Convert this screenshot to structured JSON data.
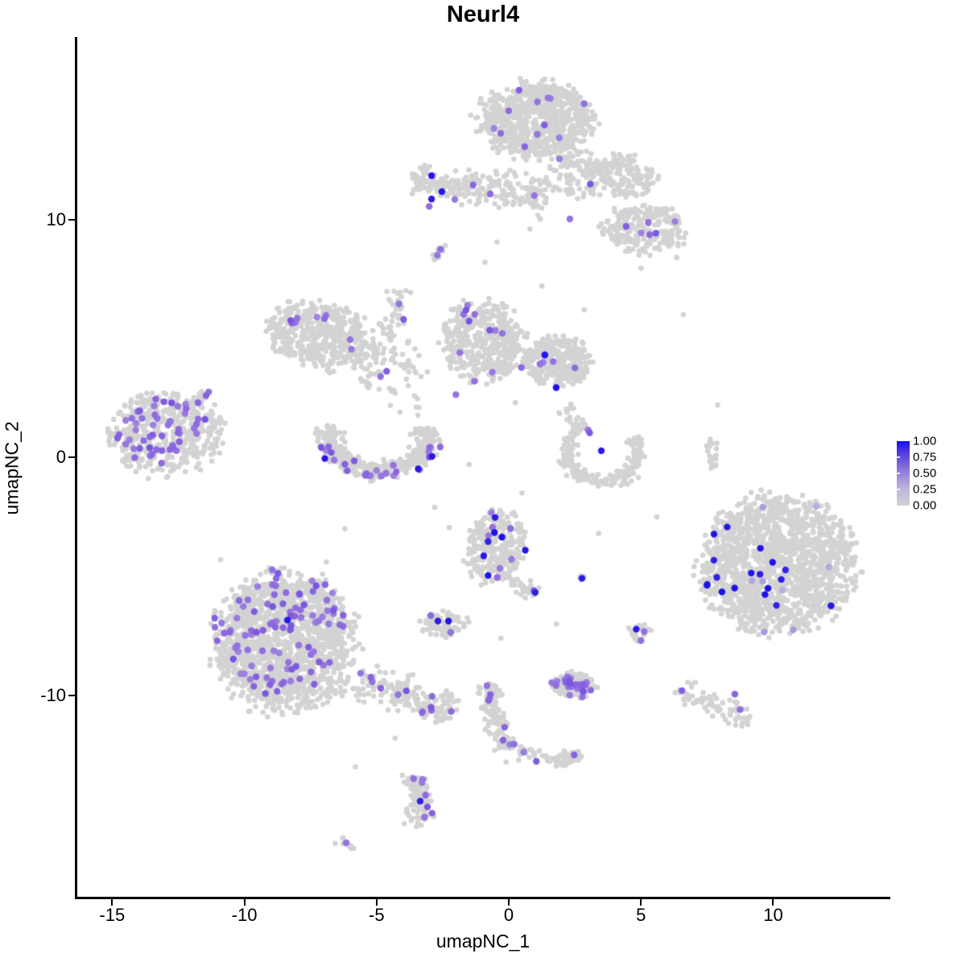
{
  "chart_data": {
    "type": "scatter",
    "title": "Neurl4",
    "xlabel": "umapNC_1",
    "ylabel": "umapNC_2",
    "xlim": [
      -16.35,
      14.4
    ],
    "ylim": [
      -18.5,
      17.6
    ],
    "x_ticks": [
      {
        "value": -15,
        "label": "-15"
      },
      {
        "value": -10,
        "label": "-10"
      },
      {
        "value": -5,
        "label": "-5"
      },
      {
        "value": 0,
        "label": "0"
      },
      {
        "value": 5,
        "label": "5"
      },
      {
        "value": 10,
        "label": "10"
      }
    ],
    "y_ticks": [
      {
        "value": 10,
        "label": "10"
      },
      {
        "value": 0,
        "label": "0"
      },
      {
        "value": -10,
        "label": "-10"
      }
    ],
    "legend": {
      "labels": [
        "1.00",
        "0.75",
        "0.50",
        "0.25",
        "0.00"
      ],
      "values": [
        1.0,
        0.75,
        0.5,
        0.25,
        0.0
      ],
      "gradient_top": "#1a0fe8",
      "gradient_bottom": "#d3d3d3"
    },
    "colors": {
      "low": "#D3D3D3",
      "light": "#B2A5DE",
      "mid": "#8A63DF",
      "high": "#1C10E8"
    },
    "point": {
      "r_gray": 3.3,
      "r_colored": 4.2
    },
    "seed": 42,
    "clusters": [
      {
        "name": "top-blob",
        "shape": "blob",
        "cx": 1.0,
        "cy": 14.2,
        "rx": 2.1,
        "ry": 1.55,
        "rot": 0,
        "n": 750,
        "mids": 12
      },
      {
        "name": "top-blob-tail",
        "shape": "blob",
        "cx": 2.6,
        "cy": 11.9,
        "rx": 1.15,
        "ry": 1.0,
        "rot": 0,
        "n": 110,
        "mids": 2
      },
      {
        "name": "top-arm-upper",
        "shape": "blob",
        "cx": 4.4,
        "cy": 11.8,
        "rx": 1.2,
        "ry": 0.85,
        "rot": -20,
        "n": 140
      },
      {
        "name": "top-arm-lower",
        "shape": "blob",
        "cx": 5.1,
        "cy": 9.6,
        "rx": 1.5,
        "ry": 1.05,
        "rot": 0,
        "n": 230,
        "mids": 5,
        "colored_shape": {
          "shape": "blob",
          "cx": 5.5,
          "cy": 9.5,
          "rx": 0.9,
          "ry": 0.6,
          "rot": 0
        },
        "mid_pts": [
          [
            2.31,
            10.02
          ],
          [
            4.44,
            9.71
          ]
        ]
      },
      {
        "name": "upper-band",
        "shape": "strand",
        "x1": -3.6,
        "y1": 11.6,
        "x2": 1.5,
        "y2": 11.05,
        "w": 0.42,
        "n": 240,
        "high_pts": [
          [
            -2.92,
            11.84
          ],
          [
            -2.53,
            11.17
          ],
          [
            -2.92,
            10.86
          ]
        ],
        "mid_pts": [
          [
            -3.01,
            10.55
          ],
          [
            -2.04,
            10.84
          ],
          [
            -0.7,
            11.07
          ],
          [
            0.97,
            11.0
          ],
          [
            -1.35,
            11.45
          ]
        ]
      },
      {
        "name": "small-dash-upper",
        "shape": "strand",
        "x1": -2.87,
        "y1": 8.3,
        "x2": -2.5,
        "y2": 8.97,
        "w": 0.1,
        "n": 10,
        "mid_pts": [
          [
            -2.7,
            8.5
          ],
          [
            -2.58,
            8.75
          ]
        ]
      },
      {
        "name": "left-wing",
        "shape": "blob",
        "cx": -7.1,
        "cy": 5.1,
        "rx": 1.95,
        "ry": 1.35,
        "rot": -18,
        "n": 470,
        "mids": 7,
        "colored_shape": {
          "shape": "strand",
          "x1": -8.35,
          "y1": 5.5,
          "x2": -6.7,
          "y2": 6.05,
          "w": 0.2
        },
        "mid_pts": [
          [
            -6.0,
            4.95
          ],
          [
            -4.62,
            3.62
          ],
          [
            -5.95,
            4.55
          ]
        ]
      },
      {
        "name": "center-strand",
        "shape": "strand",
        "x1": -4.1,
        "y1": 7.15,
        "x2": -5.35,
        "y2": 2.9,
        "w": 0.28,
        "n": 75,
        "mid_pts": [
          [
            -4.15,
            6.45
          ],
          [
            -3.98,
            5.8
          ],
          [
            -4.85,
            3.4
          ]
        ]
      },
      {
        "name": "center-sparse",
        "shape": "blob",
        "cx": -3.85,
        "cy": 3.3,
        "rx": 0.9,
        "ry": 1.5,
        "rot": 0,
        "n": 40
      },
      {
        "name": "crescent",
        "shape": "arc",
        "cx": -4.93,
        "cy": 0.95,
        "rx": 1.85,
        "ry": 1.5,
        "a0": 165,
        "a1": 372,
        "w": 0.3,
        "n": 400,
        "mids": 24,
        "highs": 3,
        "colored_shape": {
          "shape": "arc",
          "cx": -4.93,
          "cy": 0.8,
          "rx": 2.0,
          "ry": 1.55,
          "a0": 180,
          "a1": 350,
          "w": 0.22
        }
      },
      {
        "name": "center-arrow",
        "shape": "blob",
        "cx": -0.95,
        "cy": 4.9,
        "rx": 1.5,
        "ry": 1.65,
        "rot": 15,
        "n": 430,
        "mids": 8,
        "colored_shape": {
          "shape": "strand",
          "x1": -1.62,
          "y1": 6.2,
          "x2": -0.08,
          "y2": 5.2,
          "w": 0.22
        },
        "mid_pts": [
          [
            -2.0,
            2.64
          ],
          [
            -1.3,
            3.2
          ],
          [
            -0.62,
            3.58
          ],
          [
            -1.85,
            4.4
          ]
        ]
      },
      {
        "name": "center-right-blob",
        "shape": "blob",
        "cx": 1.85,
        "cy": 4.05,
        "rx": 1.25,
        "ry": 1.0,
        "rot": 0,
        "n": 300,
        "mids": 6,
        "highs": 2
      },
      {
        "name": "far-left-cluster",
        "shape": "blob",
        "cx": -13.0,
        "cy": 1.05,
        "rx": 2.1,
        "ry": 1.7,
        "rot": 10,
        "n": 430,
        "mids": 50,
        "colored_shape": {
          "shape": "blob",
          "cx": -13.25,
          "cy": 1.15,
          "rx": 1.6,
          "ry": 1.35,
          "rot": 10
        },
        "mid_pts": [
          [
            -11.45,
            2.6
          ],
          [
            -11.75,
            2.3
          ],
          [
            -12.2,
            2.05
          ],
          [
            -11.35,
            2.75
          ]
        ]
      },
      {
        "name": "far-left-arm",
        "shape": "strand",
        "x1": -12.3,
        "y1": 1.95,
        "x2": -11.3,
        "y2": 2.8,
        "w": 0.15,
        "n": 26
      },
      {
        "name": "hook",
        "shape": "arc",
        "cx": 3.55,
        "cy": 0.3,
        "rx": 1.35,
        "ry": 1.35,
        "a0": 120,
        "a1": 385,
        "w": 0.28,
        "n": 210,
        "mid_pts": [
          [
            3.06,
            1.03
          ],
          [
            3.0,
            1.15
          ]
        ],
        "high_pts": [
          [
            3.5,
            0.28
          ]
        ]
      },
      {
        "name": "hook-top-dots",
        "shape": "blob",
        "cx": 2.2,
        "cy": 1.9,
        "rx": 0.5,
        "ry": 0.45,
        "rot": 0,
        "n": 12
      },
      {
        "name": "right-dash",
        "shape": "strand",
        "x1": 7.65,
        "y1": 0.85,
        "x2": 7.72,
        "y2": -0.5,
        "w": 0.12,
        "n": 22
      },
      {
        "name": "bottom-left-big",
        "shape": "blob",
        "cx": -8.45,
        "cy": -7.8,
        "rx": 2.55,
        "ry": 2.85,
        "rot": 0,
        "n": 1450,
        "mids": 100,
        "colored_shape": {
          "shape": "blob",
          "cx": -8.6,
          "cy": -7.35,
          "rx": 2.25,
          "ry": 2.5,
          "rot": 0
        },
        "high_pts": [
          [
            -8.37,
            -6.84
          ]
        ]
      },
      {
        "name": "bottom-left-tail",
        "shape": "strand",
        "x1": -5.6,
        "y1": -9.3,
        "x2": -2.1,
        "y2": -10.85,
        "w": 0.45,
        "n": 170,
        "mids": 12
      },
      {
        "name": "center-bottom-cluster",
        "shape": "blob",
        "cx": -0.5,
        "cy": -3.8,
        "rx": 1.1,
        "ry": 1.45,
        "rot": -10,
        "n": 260,
        "mids": 7,
        "highs": 7
      },
      {
        "name": "center-bottom-tail",
        "shape": "strand",
        "x1": 0.1,
        "y1": -5.2,
        "x2": 1.05,
        "y2": -5.75,
        "w": 0.2,
        "n": 28,
        "mid_pts": [
          [
            0.95,
            -5.6
          ]
        ],
        "high_pts": [
          [
            1.0,
            -5.68
          ]
        ]
      },
      {
        "name": "isolated-blue-dot",
        "shape": "blob",
        "cx": 2.78,
        "cy": -5.1,
        "rx": 0.2,
        "ry": 0.16,
        "rot": 0,
        "n": 7,
        "high_pts": [
          [
            2.77,
            -5.08
          ]
        ]
      },
      {
        "name": "small-mid-cluster",
        "shape": "blob",
        "cx": -2.45,
        "cy": -7.0,
        "rx": 0.85,
        "ry": 0.55,
        "rot": 0,
        "n": 75,
        "high_pts": [
          [
            -2.68,
            -6.88
          ],
          [
            -2.28,
            -6.88
          ]
        ],
        "mid_pts": [
          [
            -2.95,
            -6.65
          ],
          [
            -2.2,
            -7.35
          ]
        ]
      },
      {
        "name": "right-big-cluster",
        "shape": "blob",
        "cx": 10.15,
        "cy": -4.5,
        "rx": 2.85,
        "ry": 2.75,
        "rot": 25,
        "n": 1500,
        "highs": 18,
        "lights": 8
      },
      {
        "name": "dense-purple-cluster",
        "shape": "blob",
        "cx": 2.45,
        "cy": -9.55,
        "rx": 0.8,
        "ry": 0.52,
        "rot": -5,
        "n": 150,
        "mids": 26
      },
      {
        "name": "small-right-cluster",
        "shape": "blob",
        "cx": 4.95,
        "cy": -7.4,
        "rx": 0.42,
        "ry": 0.4,
        "rot": 0,
        "n": 22,
        "high_pts": [
          [
            4.82,
            -7.22
          ]
        ],
        "mid_pts": [
          [
            5.12,
            -7.32
          ],
          [
            5.0,
            -7.7
          ]
        ]
      },
      {
        "name": "bottom-string",
        "shape": "strand",
        "x1": -0.9,
        "y1": -9.45,
        "x2": -0.12,
        "y2": -12.2,
        "w": 0.28,
        "n": 115,
        "mids": 8
      },
      {
        "name": "bottom-string-arm",
        "shape": "strand",
        "x1": -0.05,
        "y1": -12.25,
        "x2": 2.4,
        "y2": -12.7,
        "w": 0.22,
        "n": 55,
        "mids": 2
      },
      {
        "name": "bottom-string-end",
        "shape": "blob",
        "cx": 2.5,
        "cy": -12.6,
        "rx": 0.35,
        "ry": 0.28,
        "rot": 0,
        "n": 20,
        "mids": 1
      },
      {
        "name": "bottom-right-arm",
        "shape": "strand",
        "x1": 6.45,
        "y1": -9.75,
        "x2": 9.2,
        "y2": -11.2,
        "w": 0.3,
        "n": 70,
        "mid_pts": [
          [
            8.55,
            -9.95
          ],
          [
            8.75,
            -10.6
          ],
          [
            6.55,
            -9.8
          ]
        ]
      },
      {
        "name": "teardrop",
        "shape": "strand",
        "x1": -3.52,
        "y1": -13.4,
        "x2": -3.3,
        "y2": -15.35,
        "w": 0.3,
        "n": 90,
        "mids": 6,
        "high_pts": [
          [
            -3.35,
            -14.45
          ]
        ],
        "mid_pts": [
          [
            -3.6,
            -13.5
          ]
        ]
      },
      {
        "name": "bottom-dash",
        "shape": "strand",
        "x1": -6.4,
        "y1": -16.05,
        "x2": -5.9,
        "y2": -16.4,
        "w": 0.1,
        "n": 12,
        "mid_pts": [
          [
            -6.15,
            -16.2
          ]
        ]
      },
      {
        "name": "sparse-singles",
        "shape": "pts",
        "n": 0,
        "gray_pts": [
          [
            -2.8,
            -2.1
          ],
          [
            -2.25,
            -2.95
          ],
          [
            4.2,
            9.05
          ],
          [
            5.0,
            7.95
          ],
          [
            1.25,
            7.2
          ],
          [
            2.85,
            6.2
          ],
          [
            6.6,
            6.0
          ],
          [
            -0.45,
            9.05
          ],
          [
            2.05,
            3.0
          ],
          [
            0.25,
            2.3
          ],
          [
            6.35,
            8.4
          ],
          [
            -0.9,
            8.2
          ],
          [
            -1.5,
            -0.3
          ],
          [
            0.5,
            -1.5
          ],
          [
            3.4,
            -3.2
          ],
          [
            5.6,
            -2.5
          ],
          [
            -4.3,
            -11.8
          ],
          [
            -0.3,
            -7.6
          ],
          [
            1.8,
            -7.0
          ],
          [
            -5.8,
            -13.0
          ],
          [
            -6.9,
            -4.4
          ],
          [
            -6.2,
            -3.0
          ],
          [
            -10.9,
            -4.3
          ],
          [
            7.9,
            2.2
          ],
          [
            0.8,
            9.6
          ]
        ]
      }
    ]
  }
}
